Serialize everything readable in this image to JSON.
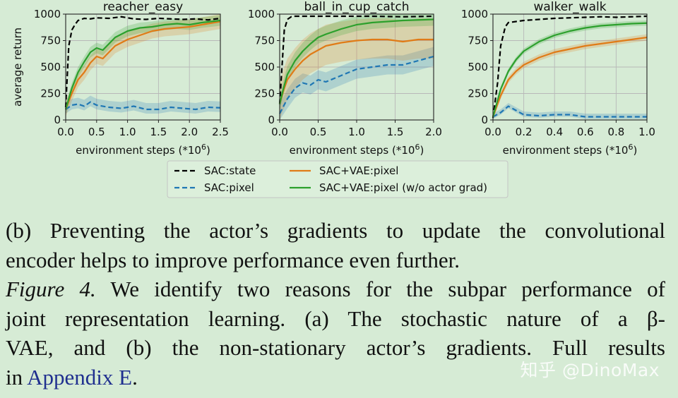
{
  "chart_data": [
    {
      "type": "line",
      "title": "reacher_easy",
      "xlabel": "environment steps (*10^6)",
      "ylabel": "average return",
      "xlim": [
        0,
        2.5
      ],
      "ylim": [
        0,
        1000
      ],
      "xticks": [
        "0.0",
        "0.5",
        "1.0",
        "1.5",
        "2.0",
        "2.5"
      ],
      "yticks": [
        "0",
        "250",
        "500",
        "750",
        "1000"
      ],
      "grid": true,
      "series": [
        {
          "name": "SAC:state",
          "color": "#000000",
          "dash": "dashed",
          "x": [
            0,
            0.05,
            0.1,
            0.15,
            0.2,
            0.3,
            0.4,
            0.5,
            0.7,
            0.9,
            1.1,
            1.3,
            1.5,
            1.7,
            1.9,
            2.1,
            2.3,
            2.5
          ],
          "y": [
            120,
            700,
            850,
            900,
            940,
            960,
            955,
            965,
            960,
            975,
            955,
            950,
            960,
            955,
            950,
            955,
            945,
            960
          ]
        },
        {
          "name": "SAC:pixel",
          "color": "#1f77b4",
          "dash": "dashed",
          "x": [
            0,
            0.1,
            0.2,
            0.3,
            0.4,
            0.5,
            0.7,
            0.9,
            1.1,
            1.3,
            1.5,
            1.7,
            1.9,
            2.1,
            2.3,
            2.5
          ],
          "y": [
            100,
            140,
            150,
            130,
            170,
            140,
            120,
            110,
            130,
            100,
            100,
            120,
            110,
            100,
            120,
            115
          ],
          "band": [
            60,
            40
          ]
        },
        {
          "name": "SAC+VAE:pixel",
          "color": "#e07b17",
          "dash": "solid",
          "x": [
            0,
            0.1,
            0.2,
            0.3,
            0.4,
            0.5,
            0.6,
            0.8,
            1.0,
            1.2,
            1.4,
            1.6,
            1.8,
            2.0,
            2.2,
            2.5
          ],
          "y": [
            100,
            250,
            380,
            450,
            540,
            600,
            580,
            700,
            760,
            800,
            840,
            860,
            870,
            880,
            900,
            930
          ],
          "band": [
            70,
            70
          ]
        },
        {
          "name": "SAC+VAE:pixel (w/o actor grad)",
          "color": "#2ca02c",
          "dash": "solid",
          "x": [
            0,
            0.1,
            0.2,
            0.3,
            0.4,
            0.5,
            0.6,
            0.8,
            1.0,
            1.2,
            1.4,
            1.6,
            1.8,
            2.0,
            2.2,
            2.5
          ],
          "y": [
            100,
            300,
            450,
            550,
            640,
            680,
            660,
            780,
            840,
            870,
            880,
            900,
            910,
            900,
            920,
            940
          ],
          "band": [
            50,
            50
          ]
        }
      ]
    },
    {
      "type": "line",
      "title": "ball_in_cup_catch",
      "xlabel": "environment steps (*10^6)",
      "ylabel": "",
      "xlim": [
        0,
        2.0
      ],
      "ylim": [
        0,
        1000
      ],
      "xticks": [
        "0.0",
        "0.5",
        "1.0",
        "1.5",
        "2.0"
      ],
      "yticks": [
        "0",
        "250",
        "500",
        "750",
        "1000"
      ],
      "grid": true,
      "series": [
        {
          "name": "SAC:state",
          "color": "#000000",
          "dash": "dashed",
          "x": [
            0,
            0.03,
            0.06,
            0.1,
            0.15,
            0.2,
            0.4,
            0.8,
            1.2,
            1.6,
            2.0
          ],
          "y": [
            150,
            500,
            850,
            950,
            975,
            980,
            980,
            980,
            980,
            975,
            980
          ]
        },
        {
          "name": "SAC:pixel",
          "color": "#1f77b4",
          "dash": "dashed",
          "x": [
            0,
            0.1,
            0.2,
            0.3,
            0.4,
            0.5,
            0.6,
            0.8,
            1.0,
            1.2,
            1.4,
            1.6,
            1.8,
            2.0
          ],
          "y": [
            60,
            200,
            300,
            350,
            330,
            380,
            360,
            420,
            480,
            500,
            520,
            520,
            560,
            600
          ],
          "band": [
            90,
            90
          ]
        },
        {
          "name": "SAC+VAE:pixel",
          "color": "#e07b17",
          "dash": "solid",
          "x": [
            0,
            0.05,
            0.1,
            0.2,
            0.3,
            0.4,
            0.5,
            0.6,
            0.8,
            1.0,
            1.2,
            1.4,
            1.6,
            1.8,
            2.0
          ],
          "y": [
            150,
            280,
            380,
            480,
            560,
            620,
            660,
            700,
            730,
            750,
            760,
            760,
            740,
            760,
            760
          ],
          "band": [
            200,
            180
          ]
        },
        {
          "name": "SAC+VAE:pixel (w/o actor grad)",
          "color": "#2ca02c",
          "dash": "solid",
          "x": [
            0,
            0.05,
            0.1,
            0.2,
            0.3,
            0.4,
            0.5,
            0.6,
            0.8,
            1.0,
            1.2,
            1.4,
            1.6,
            1.8,
            2.0
          ],
          "y": [
            150,
            300,
            430,
            560,
            650,
            720,
            780,
            810,
            860,
            900,
            920,
            930,
            940,
            945,
            950
          ],
          "band": [
            80,
            60
          ]
        }
      ]
    },
    {
      "type": "line",
      "title": "walker_walk",
      "xlabel": "environment steps (*10^6)",
      "ylabel": "",
      "xlim": [
        0,
        1.0
      ],
      "ylim": [
        0,
        1000
      ],
      "xticks": [
        "0.0",
        "0.2",
        "0.4",
        "0.6",
        "0.8",
        "1.0"
      ],
      "yticks": [
        "0",
        "250",
        "500",
        "750",
        "1000"
      ],
      "grid": true,
      "series": [
        {
          "name": "SAC:state",
          "color": "#000000",
          "dash": "dashed",
          "x": [
            0,
            0.03,
            0.05,
            0.08,
            0.1,
            0.15,
            0.2,
            0.3,
            0.4,
            0.5,
            0.6,
            0.7,
            0.8,
            0.9,
            1.0
          ],
          "y": [
            20,
            350,
            700,
            880,
            920,
            930,
            940,
            950,
            960,
            965,
            970,
            975,
            970,
            975,
            980
          ]
        },
        {
          "name": "SAC:pixel",
          "color": "#1f77b4",
          "dash": "dashed",
          "x": [
            0,
            0.05,
            0.1,
            0.15,
            0.2,
            0.3,
            0.4,
            0.5,
            0.6,
            0.7,
            0.8,
            0.9,
            1.0
          ],
          "y": [
            30,
            70,
            130,
            90,
            50,
            40,
            50,
            50,
            30,
            30,
            30,
            30,
            30
          ],
          "band": [
            30,
            20
          ]
        },
        {
          "name": "SAC+VAE:pixel",
          "color": "#e07b17",
          "dash": "solid",
          "x": [
            0,
            0.05,
            0.1,
            0.15,
            0.2,
            0.3,
            0.4,
            0.5,
            0.6,
            0.7,
            0.8,
            0.9,
            1.0
          ],
          "y": [
            30,
            230,
            380,
            460,
            520,
            590,
            640,
            670,
            700,
            720,
            740,
            760,
            780
          ],
          "band": [
            30,
            30
          ]
        },
        {
          "name": "SAC+VAE:pixel (w/o actor grad)",
          "color": "#2ca02c",
          "dash": "solid",
          "x": [
            0,
            0.05,
            0.1,
            0.15,
            0.2,
            0.3,
            0.4,
            0.5,
            0.6,
            0.7,
            0.8,
            0.9,
            1.0
          ],
          "y": [
            30,
            290,
            460,
            570,
            650,
            740,
            800,
            840,
            870,
            890,
            900,
            910,
            915
          ],
          "band": [
            25,
            25
          ]
        }
      ]
    }
  ],
  "legend": {
    "placement": "bottom-center",
    "entries": [
      "SAC:state",
      "SAC+VAE:pixel",
      "SAC:pixel",
      "SAC+VAE:pixel (w/o actor grad)"
    ]
  },
  "caption": {
    "part_b_lines": [
      "(b) Preventing the actor’s gradients to update the convolutional",
      "encoder helps to improve performance even further."
    ],
    "figure_label": "Figure 4.",
    "line1_rest": " We identify two reasons for the subpar performance of",
    "line2": "joint representation learning.  (a) The stochastic nature of a β-",
    "line3": "VAE, and (b) the non-stationary actor’s gradients.  Full results",
    "line4_prefix": "in ",
    "appendix_link": "Appendix E",
    "line4_suffix": "."
  },
  "watermark": "知乎 @DinoMax"
}
